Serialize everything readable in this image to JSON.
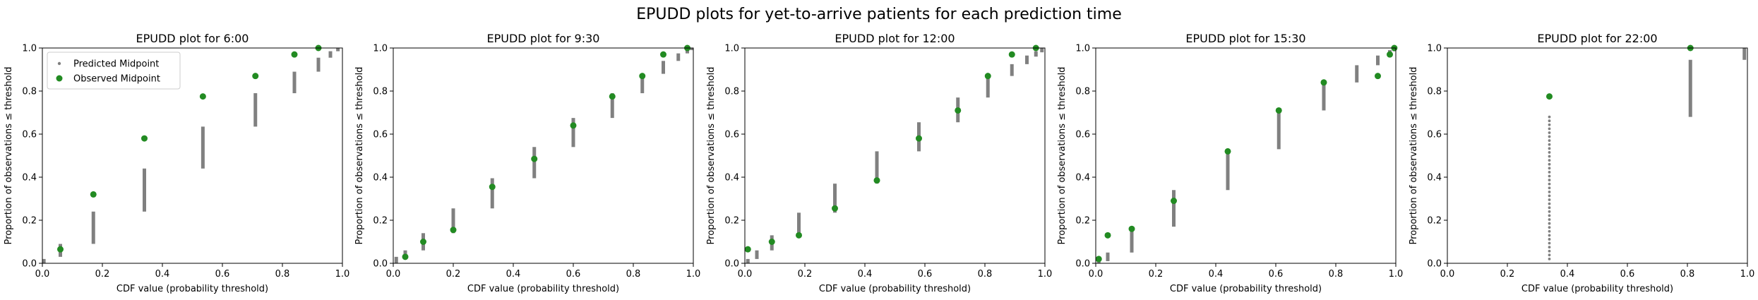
{
  "figure": {
    "title": "EPUDD plots for yet-to-arrive patients for each prediction time"
  },
  "legend": {
    "predicted": "Predicted Midpoint",
    "observed": "Observed Midpoint"
  },
  "colors": {
    "predicted": "#808080",
    "observed": "#228b22"
  },
  "chart_data": [
    {
      "type": "scatter",
      "title": "EPUDD plot for 6:00",
      "xlabel": "CDF value (probability threshold)",
      "ylabel": "Proportion of observations ≤ threshold",
      "xlim": [
        0,
        1
      ],
      "ylim": [
        0,
        1
      ],
      "xticks": [
        "0.0",
        "0.2",
        "0.4",
        "0.6",
        "0.8",
        "1.0"
      ],
      "yticks": [
        "0.0",
        "0.2",
        "0.4",
        "0.6",
        "0.8",
        "1.0"
      ],
      "grid": false,
      "legend_position": "top-left",
      "predicted_ranges": [
        {
          "x": 0.005,
          "y_low": 0.0,
          "y_high": 0.02
        },
        {
          "x": 0.06,
          "y_low": 0.03,
          "y_high": 0.09
        },
        {
          "x": 0.17,
          "y_low": 0.09,
          "y_high": 0.24
        },
        {
          "x": 0.34,
          "y_low": 0.24,
          "y_high": 0.44
        },
        {
          "x": 0.535,
          "y_low": 0.44,
          "y_high": 0.635
        },
        {
          "x": 0.71,
          "y_low": 0.635,
          "y_high": 0.79
        },
        {
          "x": 0.84,
          "y_low": 0.79,
          "y_high": 0.89
        },
        {
          "x": 0.92,
          "y_low": 0.89,
          "y_high": 0.955
        },
        {
          "x": 0.96,
          "y_low": 0.955,
          "y_high": 0.985
        },
        {
          "x": 0.985,
          "y_low": 0.985,
          "y_high": 1.0
        }
      ],
      "observed": [
        {
          "x": 0.06,
          "y": 0.065
        },
        {
          "x": 0.17,
          "y": 0.32
        },
        {
          "x": 0.34,
          "y": 0.58
        },
        {
          "x": 0.535,
          "y": 0.775
        },
        {
          "x": 0.71,
          "y": 0.87
        },
        {
          "x": 0.84,
          "y": 0.97
        },
        {
          "x": 0.92,
          "y": 1.0
        }
      ]
    },
    {
      "type": "scatter",
      "title": "EPUDD plot for 9:30",
      "xlabel": "CDF value (probability threshold)",
      "ylabel": "Proportion of observations ≤ threshold",
      "xlim": [
        0,
        1
      ],
      "ylim": [
        0,
        1
      ],
      "xticks": [
        "0.0",
        "0.2",
        "0.4",
        "0.6",
        "0.8",
        "1.0"
      ],
      "yticks": [
        "0.0",
        "0.2",
        "0.4",
        "0.6",
        "0.8",
        "1.0"
      ],
      "grid": false,
      "predicted_ranges": [
        {
          "x": 0.01,
          "y_low": 0.0,
          "y_high": 0.03
        },
        {
          "x": 0.04,
          "y_low": 0.02,
          "y_high": 0.06
        },
        {
          "x": 0.1,
          "y_low": 0.06,
          "y_high": 0.14
        },
        {
          "x": 0.2,
          "y_low": 0.14,
          "y_high": 0.255
        },
        {
          "x": 0.33,
          "y_low": 0.255,
          "y_high": 0.395
        },
        {
          "x": 0.47,
          "y_low": 0.395,
          "y_high": 0.54
        },
        {
          "x": 0.6,
          "y_low": 0.54,
          "y_high": 0.675
        },
        {
          "x": 0.73,
          "y_low": 0.675,
          "y_high": 0.79
        },
        {
          "x": 0.83,
          "y_low": 0.79,
          "y_high": 0.88
        },
        {
          "x": 0.9,
          "y_low": 0.88,
          "y_high": 0.94
        },
        {
          "x": 0.95,
          "y_low": 0.94,
          "y_high": 0.975
        },
        {
          "x": 0.98,
          "y_low": 0.975,
          "y_high": 0.995
        },
        {
          "x": 0.995,
          "y_low": 0.99,
          "y_high": 1.0
        }
      ],
      "observed": [
        {
          "x": 0.04,
          "y": 0.03
        },
        {
          "x": 0.1,
          "y": 0.1
        },
        {
          "x": 0.2,
          "y": 0.155
        },
        {
          "x": 0.33,
          "y": 0.355
        },
        {
          "x": 0.47,
          "y": 0.485
        },
        {
          "x": 0.6,
          "y": 0.64
        },
        {
          "x": 0.73,
          "y": 0.775
        },
        {
          "x": 0.83,
          "y": 0.87
        },
        {
          "x": 0.9,
          "y": 0.97
        },
        {
          "x": 0.98,
          "y": 1.0
        }
      ]
    },
    {
      "type": "scatter",
      "title": "EPUDD plot for 12:00",
      "xlabel": "CDF value (probability threshold)",
      "ylabel": "Proportion of observations ≤ threshold",
      "xlim": [
        0,
        1
      ],
      "ylim": [
        0,
        1
      ],
      "xticks": [
        "0.0",
        "0.2",
        "0.4",
        "0.6",
        "0.8",
        "1.0"
      ],
      "yticks": [
        "0.0",
        "0.2",
        "0.4",
        "0.6",
        "0.8",
        "1.0"
      ],
      "grid": false,
      "predicted_ranges": [
        {
          "x": 0.01,
          "y_low": 0.0,
          "y_high": 0.02
        },
        {
          "x": 0.04,
          "y_low": 0.02,
          "y_high": 0.06
        },
        {
          "x": 0.09,
          "y_low": 0.06,
          "y_high": 0.13
        },
        {
          "x": 0.18,
          "y_low": 0.13,
          "y_high": 0.235
        },
        {
          "x": 0.3,
          "y_low": 0.235,
          "y_high": 0.37
        },
        {
          "x": 0.44,
          "y_low": 0.37,
          "y_high": 0.52
        },
        {
          "x": 0.58,
          "y_low": 0.52,
          "y_high": 0.655
        },
        {
          "x": 0.71,
          "y_low": 0.655,
          "y_high": 0.77
        },
        {
          "x": 0.81,
          "y_low": 0.77,
          "y_high": 0.87
        },
        {
          "x": 0.89,
          "y_low": 0.87,
          "y_high": 0.925
        },
        {
          "x": 0.94,
          "y_low": 0.925,
          "y_high": 0.965
        },
        {
          "x": 0.97,
          "y_low": 0.96,
          "y_high": 0.985
        },
        {
          "x": 0.99,
          "y_low": 0.98,
          "y_high": 1.0
        }
      ],
      "observed": [
        {
          "x": 0.01,
          "y": 0.065
        },
        {
          "x": 0.09,
          "y": 0.1
        },
        {
          "x": 0.18,
          "y": 0.13
        },
        {
          "x": 0.3,
          "y": 0.255
        },
        {
          "x": 0.44,
          "y": 0.385
        },
        {
          "x": 0.58,
          "y": 0.58
        },
        {
          "x": 0.71,
          "y": 0.71
        },
        {
          "x": 0.81,
          "y": 0.87
        },
        {
          "x": 0.89,
          "y": 0.97
        },
        {
          "x": 0.97,
          "y": 1.0
        }
      ]
    },
    {
      "type": "scatter",
      "title": "EPUDD plot for 15:30",
      "xlabel": "CDF value (probability threshold)",
      "ylabel": "Proportion of observations ≤ threshold",
      "xlim": [
        0,
        1
      ],
      "ylim": [
        0,
        1
      ],
      "xticks": [
        "0.0",
        "0.2",
        "0.4",
        "0.6",
        "0.8",
        "1.0"
      ],
      "yticks": [
        "0.0",
        "0.2",
        "0.4",
        "0.6",
        "0.8",
        "1.0"
      ],
      "grid": false,
      "predicted_ranges": [
        {
          "x": 0.01,
          "y_low": 0.0,
          "y_high": 0.02
        },
        {
          "x": 0.04,
          "y_low": 0.01,
          "y_high": 0.05
        },
        {
          "x": 0.12,
          "y_low": 0.05,
          "y_high": 0.17
        },
        {
          "x": 0.26,
          "y_low": 0.17,
          "y_high": 0.34
        },
        {
          "x": 0.44,
          "y_low": 0.34,
          "y_high": 0.53
        },
        {
          "x": 0.61,
          "y_low": 0.53,
          "y_high": 0.71
        },
        {
          "x": 0.76,
          "y_low": 0.71,
          "y_high": 0.84
        },
        {
          "x": 0.87,
          "y_low": 0.84,
          "y_high": 0.92
        },
        {
          "x": 0.94,
          "y_low": 0.92,
          "y_high": 0.965
        },
        {
          "x": 0.98,
          "y_low": 0.965,
          "y_high": 0.99
        },
        {
          "x": 0.995,
          "y_low": 0.985,
          "y_high": 1.0
        }
      ],
      "observed": [
        {
          "x": 0.01,
          "y": 0.02
        },
        {
          "x": 0.04,
          "y": 0.13
        },
        {
          "x": 0.12,
          "y": 0.16
        },
        {
          "x": 0.26,
          "y": 0.29
        },
        {
          "x": 0.44,
          "y": 0.52
        },
        {
          "x": 0.61,
          "y": 0.71
        },
        {
          "x": 0.76,
          "y": 0.84
        },
        {
          "x": 0.94,
          "y": 0.87
        },
        {
          "x": 0.98,
          "y": 0.97
        },
        {
          "x": 0.995,
          "y": 1.0
        }
      ]
    },
    {
      "type": "scatter",
      "title": "EPUDD plot for 22:00",
      "xlabel": "CDF value (probability threshold)",
      "ylabel": "Proportion of observations ≤ threshold",
      "xlim": [
        0,
        1
      ],
      "ylim": [
        0,
        1
      ],
      "xticks": [
        "0.0",
        "0.2",
        "0.4",
        "0.6",
        "0.8",
        "1.0"
      ],
      "yticks": [
        "0.0",
        "0.2",
        "0.4",
        "0.6",
        "0.8",
        "1.0"
      ],
      "grid": false,
      "predicted_ranges": [
        {
          "x": 0.34,
          "y_low": 0.02,
          "y_high": 0.68,
          "style": "dotted"
        },
        {
          "x": 0.81,
          "y_low": 0.68,
          "y_high": 0.945
        },
        {
          "x": 0.99,
          "y_low": 0.945,
          "y_high": 1.0
        }
      ],
      "observed": [
        {
          "x": 0.34,
          "y": 0.775
        },
        {
          "x": 0.81,
          "y": 1.0
        }
      ]
    }
  ]
}
